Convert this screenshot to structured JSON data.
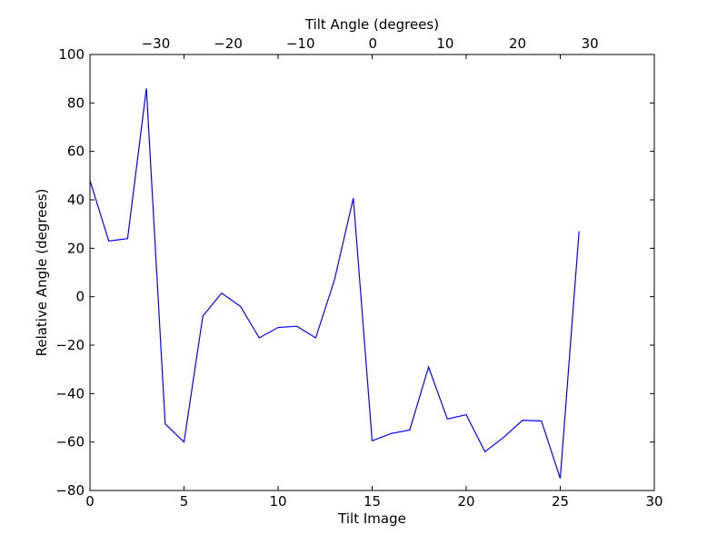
{
  "chart_data": {
    "type": "line",
    "xlabel": "Tilt Image",
    "ylabel": "Relative Angle (degrees)",
    "x2label": "Tilt Angle (degrees)",
    "xlim": [
      0,
      30
    ],
    "ylim": [
      -80,
      100
    ],
    "xticks": [
      0,
      5,
      10,
      15,
      20,
      25,
      30
    ],
    "yticks": [
      -80,
      -60,
      -40,
      -20,
      0,
      20,
      40,
      60,
      80,
      100
    ],
    "x2ticks": [
      -30,
      -20,
      -10,
      0,
      10,
      20,
      30
    ],
    "x2_mapping": {
      "angle_at_image_0": -39.1,
      "degrees_per_image": 2.6
    },
    "grid": false,
    "line_color": "#0000ff",
    "series": [
      {
        "x": [
          0,
          1,
          2,
          3,
          4,
          5,
          6,
          7,
          8,
          9,
          10,
          11,
          12,
          13,
          14,
          15,
          16,
          17,
          18,
          19,
          20,
          21,
          22,
          23,
          24,
          25,
          26
        ],
        "values": [
          48,
          23,
          24,
          86,
          -52.5,
          -60,
          -8,
          1.5,
          -4,
          -17,
          -12.7,
          -12.2,
          -17,
          7,
          40.7,
          -59.5,
          -56.5,
          -55,
          -29,
          -50.5,
          -48.7,
          -64,
          -58,
          -51,
          -51.3,
          -75,
          27
        ]
      }
    ]
  }
}
